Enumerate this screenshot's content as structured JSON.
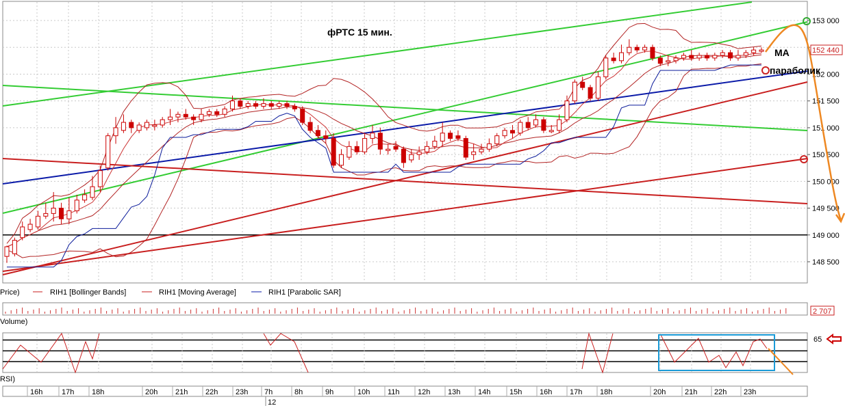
{
  "annotations": {
    "title": "фРТС   15 мин.",
    "ma_label": "MA",
    "parabolic_label": "параболик"
  },
  "legend": {
    "price": "Price)",
    "bollinger": "RIH1 [Bollinger Bands]",
    "moving_average": "RIH1 [Moving Average]",
    "parabolic_sar": "RIH1 [Parabolic SAR]"
  },
  "volume_panel": {
    "label": "Volume)",
    "last_value": "2 707"
  },
  "rsi_panel": {
    "label": "RSI)",
    "level_label": "65"
  },
  "time_axis": {
    "hour_labels": [
      "16h",
      "17h",
      "18h",
      "20h",
      "21h",
      "22h",
      "23h",
      "7h",
      "8h",
      "9h",
      "10h",
      "11h",
      "12h",
      "13h",
      "14h",
      "15h",
      "16h",
      "17h",
      "18h",
      "20h",
      "21h",
      "22h",
      "23h"
    ],
    "date_label": "12"
  },
  "colors": {
    "bull_candle": "#cc0000",
    "bear_candle": "#cc0000",
    "bollinger": "#b22222",
    "moving_average": "#cc3333",
    "parabolic_sar": "#0a1a9a",
    "green_trend": "#33cc33",
    "red_trend": "#c81e1e",
    "blue_trend": "#0a1aa8",
    "forecast": "#ee8822",
    "rsi_box": "#1a9ad6",
    "arrow": "#cc0000"
  },
  "chart_data": {
    "type": "candlestick",
    "ylim": [
      148100,
      153300
    ],
    "y_ticks": [
      148500,
      149000,
      149500,
      150000,
      150500,
      151000,
      151500,
      152000,
      152500,
      153000
    ],
    "y_tick_labels": [
      "148 500",
      "149 000",
      "149 500",
      "150 000",
      "150 500",
      "151 000",
      "151 500",
      "152 000",
      "152 500",
      "153 000"
    ],
    "last_price": 152440,
    "last_price_label": "152 440",
    "support_line": 149000,
    "candles": [
      [
        148600,
        148780,
        148480,
        148800
      ],
      [
        148650,
        148900,
        148600,
        148950
      ],
      [
        148950,
        149150,
        148900,
        149250
      ],
      [
        149100,
        149200,
        149050,
        149300
      ],
      [
        149150,
        149350,
        149100,
        149450
      ],
      [
        149350,
        149400,
        149300,
        149600
      ],
      [
        149400,
        149500,
        149250,
        149800
      ],
      [
        149500,
        149300,
        149200,
        149600
      ],
      [
        149300,
        149450,
        149200,
        149700
      ],
      [
        149450,
        149650,
        149400,
        149750
      ],
      [
        149650,
        149750,
        149600,
        149850
      ],
      [
        149700,
        149900,
        149650,
        150100
      ],
      [
        149900,
        150200,
        149800,
        150300
      ],
      [
        150250,
        150850,
        150200,
        150900
      ],
      [
        150850,
        151000,
        150700,
        151200
      ],
      [
        150950,
        151100,
        150900,
        151250
      ],
      [
        151100,
        151000,
        150900,
        151150
      ],
      [
        150950,
        151050,
        150900,
        151100
      ],
      [
        151000,
        151100,
        150950,
        151150
      ],
      [
        151050,
        151050,
        150950,
        151150
      ],
      [
        151050,
        151150,
        151000,
        151200
      ],
      [
        151150,
        151200,
        151050,
        151350
      ],
      [
        151200,
        151250,
        151100,
        151300
      ],
      [
        151250,
        151200,
        151150,
        151350
      ],
      [
        151200,
        151150,
        151050,
        151250
      ],
      [
        151150,
        151250,
        151100,
        151350
      ],
      [
        151250,
        151300,
        151200,
        151350
      ],
      [
        151300,
        151250,
        151200,
        151350
      ],
      [
        151250,
        151350,
        151200,
        151400
      ],
      [
        151350,
        151500,
        151300,
        151600
      ],
      [
        151500,
        151400,
        151350,
        151550
      ],
      [
        151400,
        151450,
        151350,
        151500
      ],
      [
        151450,
        151400,
        151350,
        151500
      ],
      [
        151400,
        151450,
        151350,
        151550
      ],
      [
        151450,
        151400,
        151350,
        151500
      ],
      [
        151400,
        151450,
        151350,
        151500
      ],
      [
        151450,
        151400,
        151350,
        151500
      ],
      [
        151400,
        151350,
        151300,
        151450
      ],
      [
        151350,
        151100,
        151050,
        151400
      ],
      [
        151100,
        150950,
        150900,
        151200
      ],
      [
        150950,
        150850,
        150800,
        151050
      ],
      [
        150850,
        150800,
        150700,
        150950
      ],
      [
        150800,
        150300,
        150250,
        150900
      ],
      [
        150300,
        150500,
        150250,
        150600
      ],
      [
        150450,
        150650,
        150400,
        150750
      ],
      [
        150650,
        150550,
        150500,
        150750
      ],
      [
        150550,
        150800,
        150500,
        150900
      ],
      [
        150800,
        150900,
        150700,
        151050
      ],
      [
        150900,
        150600,
        150500,
        151000
      ],
      [
        150600,
        150600,
        150500,
        150700
      ],
      [
        150650,
        150600,
        150550,
        150750
      ],
      [
        150600,
        150350,
        150250,
        150650
      ],
      [
        150400,
        150500,
        150350,
        150600
      ],
      [
        150500,
        150550,
        150400,
        150650
      ],
      [
        150550,
        150650,
        150500,
        150750
      ],
      [
        150650,
        150750,
        150600,
        150850
      ],
      [
        150750,
        150900,
        150650,
        151100
      ],
      [
        150900,
        150800,
        150750,
        150950
      ],
      [
        150850,
        150800,
        150750,
        150950
      ],
      [
        150800,
        150450,
        150400,
        150850
      ],
      [
        150500,
        150550,
        150400,
        150700
      ],
      [
        150550,
        150600,
        150500,
        150700
      ],
      [
        150600,
        150700,
        150550,
        150800
      ],
      [
        150700,
        150850,
        150650,
        150900
      ],
      [
        150850,
        150950,
        150800,
        151000
      ],
      [
        150950,
        150900,
        150800,
        151050
      ],
      [
        150900,
        151100,
        150850,
        151150
      ],
      [
        151100,
        151000,
        150950,
        151200
      ],
      [
        151050,
        151150,
        151000,
        151250
      ],
      [
        151150,
        150950,
        150900,
        151200
      ],
      [
        150950,
        150950,
        150900,
        151050
      ],
      [
        150950,
        151150,
        150900,
        151250
      ],
      [
        151150,
        151500,
        151100,
        151600
      ],
      [
        151500,
        151850,
        151450,
        151900
      ],
      [
        151850,
        151750,
        151700,
        151950
      ],
      [
        151750,
        151550,
        151500,
        151800
      ],
      [
        151550,
        151950,
        151500,
        152050
      ],
      [
        151950,
        152300,
        151900,
        152350
      ],
      [
        152300,
        152250,
        152200,
        152400
      ],
      [
        152250,
        152400,
        152200,
        152550
      ],
      [
        152400,
        152500,
        152350,
        152650
      ],
      [
        152500,
        152450,
        152400,
        152550
      ],
      [
        152450,
        152500,
        152400,
        152550
      ],
      [
        152500,
        152300,
        152250,
        152550
      ],
      [
        152300,
        152200,
        152150,
        152350
      ],
      [
        152250,
        152250,
        152150,
        152350
      ],
      [
        152250,
        152300,
        152200,
        152350
      ],
      [
        152300,
        152350,
        152250,
        152400
      ],
      [
        152350,
        152300,
        152250,
        152450
      ],
      [
        152300,
        152350,
        152250,
        152400
      ],
      [
        152350,
        152300,
        152250,
        152400
      ],
      [
        152300,
        152350,
        152250,
        152400
      ],
      [
        152350,
        152400,
        152300,
        152450
      ],
      [
        152400,
        152300,
        152250,
        152450
      ],
      [
        152300,
        152350,
        152250,
        152450
      ],
      [
        152350,
        152400,
        152300,
        152450
      ],
      [
        152400,
        152450,
        152350,
        152500
      ],
      [
        152450,
        152450,
        152400,
        152500
      ]
    ],
    "rsi_reference_levels": [
      65,
      50,
      35
    ]
  }
}
